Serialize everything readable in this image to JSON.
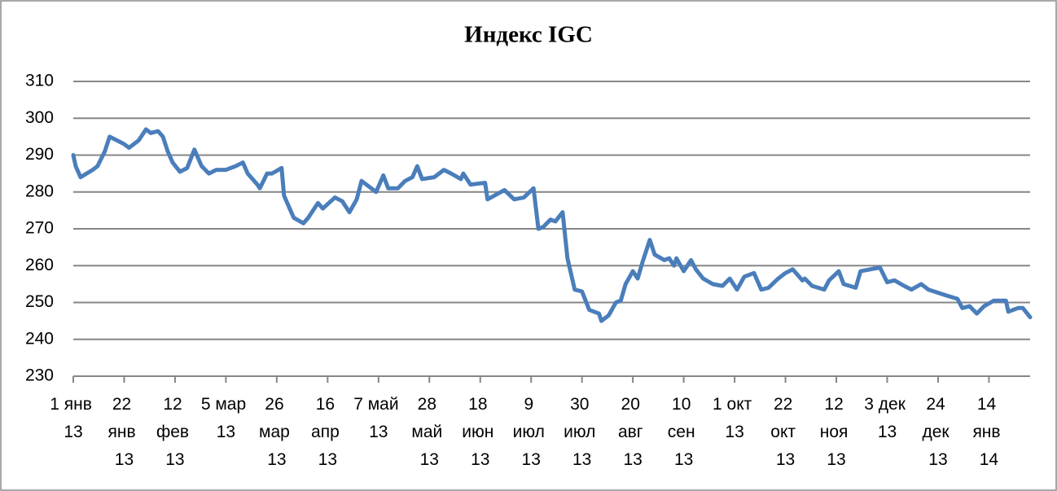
{
  "chart_data": {
    "type": "line",
    "title": "Индекс IGC",
    "x": [
      "2013-01-01",
      "2013-01-02",
      "2013-01-04",
      "2013-01-09",
      "2013-01-11",
      "2013-01-14",
      "2013-01-16",
      "2013-01-19",
      "2013-01-22",
      "2013-01-24",
      "2013-01-28",
      "2013-01-31",
      "2013-02-02",
      "2013-02-05",
      "2013-02-07",
      "2013-02-09",
      "2013-02-11",
      "2013-02-14",
      "2013-02-17",
      "2013-02-20",
      "2013-02-23",
      "2013-02-26",
      "2013-03-01",
      "2013-03-05",
      "2013-03-09",
      "2013-03-12",
      "2013-03-14",
      "2013-03-18",
      "2013-03-19",
      "2013-03-22",
      "2013-03-24",
      "2013-03-28",
      "2013-03-29",
      "2013-03-31",
      "2013-04-02",
      "2013-04-06",
      "2013-04-08",
      "2013-04-12",
      "2013-04-14",
      "2013-04-19",
      "2013-04-22",
      "2013-04-25",
      "2013-04-28",
      "2013-04-30",
      "2013-05-04",
      "2013-05-06",
      "2013-05-09",
      "2013-05-11",
      "2013-05-15",
      "2013-05-18",
      "2013-05-21",
      "2013-05-23",
      "2013-05-25",
      "2013-05-30",
      "2013-06-03",
      "2013-06-06",
      "2013-06-10",
      "2013-06-11",
      "2013-06-14",
      "2013-06-20",
      "2013-06-21",
      "2013-06-28",
      "2013-07-02",
      "2013-07-06",
      "2013-07-10",
      "2013-07-12",
      "2013-07-14",
      "2013-07-17",
      "2013-07-19",
      "2013-07-22",
      "2013-07-24",
      "2013-07-27",
      "2013-07-30",
      "2013-08-02",
      "2013-08-06",
      "2013-08-07",
      "2013-08-10",
      "2013-08-13",
      "2013-08-15",
      "2013-08-17",
      "2013-08-20",
      "2013-08-22",
      "2013-08-24",
      "2013-08-27",
      "2013-08-29",
      "2013-09-02",
      "2013-09-04",
      "2013-09-06",
      "2013-09-07",
      "2013-09-10",
      "2013-09-13",
      "2013-09-15",
      "2013-09-18",
      "2013-09-22",
      "2013-09-26",
      "2013-09-29",
      "2013-10-02",
      "2013-10-05",
      "2013-10-09",
      "2013-10-12",
      "2013-10-15",
      "2013-10-19",
      "2013-10-22",
      "2013-10-25",
      "2013-10-29",
      "2013-10-30",
      "2013-11-02",
      "2013-11-07",
      "2013-11-09",
      "2013-11-13",
      "2013-11-15",
      "2013-11-20",
      "2013-11-22",
      "2013-11-26",
      "2013-11-30",
      "2013-12-03",
      "2013-12-06",
      "2013-12-10",
      "2013-12-13",
      "2013-12-17",
      "2013-12-20",
      "2013-12-27",
      "2014-01-01",
      "2014-01-03",
      "2014-01-06",
      "2014-01-09",
      "2014-01-12",
      "2014-01-16",
      "2014-01-21",
      "2014-01-22",
      "2014-01-26",
      "2014-01-28",
      "2014-01-31"
    ],
    "series": [
      {
        "color": "#4a7ebb",
        "values": [
          290,
          287,
          284,
          286,
          287,
          291,
          295,
          294,
          293,
          292,
          294,
          297,
          296,
          296.5,
          295,
          291,
          288,
          285.5,
          286.5,
          291.5,
          287,
          285,
          286,
          286,
          287,
          288,
          285,
          282,
          281,
          285,
          285,
          286.5,
          279,
          276,
          273,
          271.5,
          273,
          277,
          275.5,
          278.5,
          277.5,
          274.5,
          278,
          283,
          281,
          280,
          284.5,
          281,
          281,
          283,
          284,
          287,
          283.5,
          284,
          286,
          285,
          283.5,
          285,
          282,
          282.5,
          278,
          280.5,
          278,
          278.5,
          281,
          270,
          270.5,
          272.5,
          272,
          274.5,
          262,
          253.5,
          253,
          248,
          247,
          245,
          246.5,
          250,
          250.5,
          255,
          258.5,
          256.5,
          261,
          267,
          263,
          261.5,
          262,
          260,
          262,
          258.5,
          261.5,
          259,
          256.5,
          255,
          254.5,
          256.5,
          253.5,
          257,
          258,
          253.5,
          254,
          256.5,
          258,
          259,
          256,
          256.5,
          254.5,
          253.5,
          256,
          258.5,
          255,
          254,
          258.5,
          259,
          259.5,
          255.5,
          256,
          254.5,
          253.5,
          255,
          253.5,
          252,
          251,
          248.5,
          249,
          247,
          249,
          250.5,
          250.5,
          247.5,
          248.5,
          248.5,
          246
        ]
      }
    ],
    "xlim": [
      "2013-01-01",
      "2014-01-31"
    ],
    "xticks": [
      {
        "value": "2013-01-01",
        "label": "1 янв 13"
      },
      {
        "value": "2013-01-22",
        "label": "22 янв 13"
      },
      {
        "value": "2013-02-12",
        "label": "12 фев 13"
      },
      {
        "value": "2013-03-05",
        "label": "5 мар 13"
      },
      {
        "value": "2013-03-26",
        "label": "26 мар 13"
      },
      {
        "value": "2013-04-16",
        "label": "16 апр 13"
      },
      {
        "value": "2013-05-07",
        "label": "7 май 13"
      },
      {
        "value": "2013-05-28",
        "label": "28 май 13"
      },
      {
        "value": "2013-06-18",
        "label": "18 июн 13"
      },
      {
        "value": "2013-07-09",
        "label": "9 июл 13"
      },
      {
        "value": "2013-07-30",
        "label": "30 июл 13"
      },
      {
        "value": "2013-08-20",
        "label": "20 авг 13"
      },
      {
        "value": "2013-09-10",
        "label": "10 сен 13"
      },
      {
        "value": "2013-10-01",
        "label": "1 окт 13"
      },
      {
        "value": "2013-10-22",
        "label": "22 окт 13"
      },
      {
        "value": "2013-11-12",
        "label": "12 ноя 13"
      },
      {
        "value": "2013-12-03",
        "label": "3 дек 13"
      },
      {
        "value": "2013-12-24",
        "label": "24 дек 13"
      },
      {
        "value": "2014-01-14",
        "label": "14 янв 14"
      }
    ],
    "ylim": [
      230,
      310
    ],
    "yticks": [
      230,
      240,
      250,
      260,
      270,
      280,
      290,
      300,
      310
    ],
    "grid": true
  }
}
